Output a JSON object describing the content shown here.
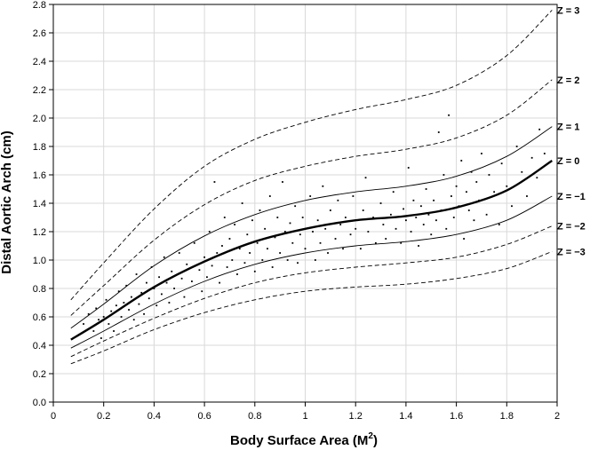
{
  "chart_data": {
    "type": "scatter",
    "title": "",
    "xlabel": "Body Surface Area (M",
    "xlabel_superscript": "2",
    "xlabel_suffix": ")",
    "ylabel": "Distal Aortic Arch (cm)",
    "xlim": [
      0,
      2
    ],
    "ylim": [
      0,
      2.8
    ],
    "grid": true,
    "x_ticks": [
      0,
      0.2,
      0.4,
      0.6,
      0.8,
      1,
      1.2,
      1.4,
      1.6,
      1.8,
      2
    ],
    "x_tick_labels": [
      "0",
      "0.2",
      "0.4",
      "0.6",
      "0.8",
      "1",
      "1.2",
      "1.4",
      "1.6",
      "1.8",
      "2"
    ],
    "y_ticks": [
      0,
      0.2,
      0.4,
      0.6,
      0.8,
      1.0,
      1.2,
      1.4,
      1.6,
      1.8,
      2.0,
      2.2,
      2.4,
      2.6,
      2.8
    ],
    "y_tick_labels": [
      "0.0",
      "0.2",
      "0.4",
      "0.6",
      "0.8",
      "1.0",
      "1.2",
      "1.4",
      "1.6",
      "1.8",
      "2.0",
      "2.2",
      "2.4",
      "2.6",
      "2.8"
    ],
    "curve_x": [
      0.07,
      0.2,
      0.4,
      0.6,
      0.8,
      1.0,
      1.2,
      1.4,
      1.6,
      1.8,
      1.98
    ],
    "series": [
      {
        "name": "Z = 3",
        "label": "Z = 3",
        "style": "dashed",
        "values": [
          0.72,
          0.98,
          1.36,
          1.66,
          1.85,
          1.97,
          2.06,
          2.13,
          2.23,
          2.44,
          2.76
        ]
      },
      {
        "name": "Z = 2",
        "label": "Z = 2",
        "style": "dashed",
        "values": [
          0.61,
          0.82,
          1.14,
          1.39,
          1.56,
          1.66,
          1.73,
          1.78,
          1.86,
          2.02,
          2.27
        ]
      },
      {
        "name": "Z = 1",
        "label": "Z = 1",
        "style": "solid",
        "values": [
          0.52,
          0.69,
          0.96,
          1.17,
          1.32,
          1.42,
          1.48,
          1.52,
          1.59,
          1.73,
          1.94
        ]
      },
      {
        "name": "Z = 0",
        "label": "Z = 0",
        "style": "bold",
        "values": [
          0.44,
          0.58,
          0.81,
          0.99,
          1.13,
          1.22,
          1.28,
          1.31,
          1.37,
          1.49,
          1.7
        ]
      },
      {
        "name": "Z = −1",
        "label": "Z = −1",
        "style": "solid",
        "values": [
          0.38,
          0.5,
          0.69,
          0.85,
          0.97,
          1.05,
          1.1,
          1.13,
          1.18,
          1.28,
          1.45
        ]
      },
      {
        "name": "Z = −2",
        "label": "Z = −2",
        "style": "dashed",
        "values": [
          0.32,
          0.43,
          0.59,
          0.73,
          0.84,
          0.91,
          0.95,
          0.98,
          1.02,
          1.11,
          1.24
        ]
      },
      {
        "name": "Z = −3",
        "label": "Z = −3",
        "style": "dashed",
        "values": [
          0.27,
          0.36,
          0.51,
          0.63,
          0.72,
          0.78,
          0.81,
          0.83,
          0.87,
          0.94,
          1.06
        ]
      }
    ],
    "points": [
      [
        0.12,
        0.55
      ],
      [
        0.14,
        0.62
      ],
      [
        0.16,
        0.5
      ],
      [
        0.17,
        0.66
      ],
      [
        0.18,
        0.58
      ],
      [
        0.19,
        0.45
      ],
      [
        0.2,
        0.6
      ],
      [
        0.21,
        0.72
      ],
      [
        0.22,
        0.55
      ],
      [
        0.23,
        0.64
      ],
      [
        0.24,
        0.5
      ],
      [
        0.25,
        0.68
      ],
      [
        0.26,
        0.78
      ],
      [
        0.27,
        0.6
      ],
      [
        0.28,
        0.7
      ],
      [
        0.29,
        0.82
      ],
      [
        0.3,
        0.65
      ],
      [
        0.31,
        0.74
      ],
      [
        0.32,
        0.58
      ],
      [
        0.33,
        0.9
      ],
      [
        0.34,
        0.69
      ],
      [
        0.35,
        0.77
      ],
      [
        0.36,
        0.62
      ],
      [
        0.37,
        0.84
      ],
      [
        0.38,
        0.73
      ],
      [
        0.39,
        0.95
      ],
      [
        0.4,
        0.8
      ],
      [
        0.41,
        0.68
      ],
      [
        0.42,
        0.88
      ],
      [
        0.43,
        0.76
      ],
      [
        0.44,
        1.02
      ],
      [
        0.45,
        0.84
      ],
      [
        0.46,
        0.7
      ],
      [
        0.47,
        0.92
      ],
      [
        0.48,
        0.8
      ],
      [
        0.5,
        1.05
      ],
      [
        0.51,
        0.87
      ],
      [
        0.52,
        0.74
      ],
      [
        0.53,
        0.97
      ],
      [
        0.55,
        0.85
      ],
      [
        0.56,
        1.12
      ],
      [
        0.58,
        0.93
      ],
      [
        0.59,
        0.78
      ],
      [
        0.6,
        1.02
      ],
      [
        0.61,
        0.88
      ],
      [
        0.62,
        1.2
      ],
      [
        0.63,
        0.96
      ],
      [
        0.64,
        1.55
      ],
      [
        0.65,
        1.05
      ],
      [
        0.66,
        0.84
      ],
      [
        0.67,
        1.1
      ],
      [
        0.68,
        1.3
      ],
      [
        0.69,
        0.95
      ],
      [
        0.7,
        1.15
      ],
      [
        0.71,
        1.0
      ],
      [
        0.72,
        1.25
      ],
      [
        0.73,
        0.9
      ],
      [
        0.74,
        1.08
      ],
      [
        0.75,
        1.4
      ],
      [
        0.76,
        0.98
      ],
      [
        0.77,
        1.18
      ],
      [
        0.78,
        1.05
      ],
      [
        0.79,
        1.28
      ],
      [
        0.8,
        0.92
      ],
      [
        0.81,
        1.12
      ],
      [
        0.82,
        1.35
      ],
      [
        0.83,
        1.0
      ],
      [
        0.84,
        1.22
      ],
      [
        0.85,
        1.08
      ],
      [
        0.86,
        1.45
      ],
      [
        0.87,
        0.95
      ],
      [
        0.88,
        1.16
      ],
      [
        0.89,
        1.3
      ],
      [
        0.9,
        1.05
      ],
      [
        0.91,
        1.55
      ],
      [
        0.92,
        1.2
      ],
      [
        0.93,
        1.0
      ],
      [
        0.94,
        1.26
      ],
      [
        0.95,
        1.12
      ],
      [
        0.96,
        1.38
      ],
      [
        0.97,
        0.98
      ],
      [
        0.98,
        1.18
      ],
      [
        0.99,
        1.3
      ],
      [
        1.0,
        1.08
      ],
      [
        1.02,
        1.45
      ],
      [
        1.03,
        1.2
      ],
      [
        1.04,
        1.0
      ],
      [
        1.05,
        1.28
      ],
      [
        1.06,
        1.12
      ],
      [
        1.07,
        1.52
      ],
      [
        1.08,
        1.22
      ],
      [
        1.09,
        1.05
      ],
      [
        1.1,
        1.35
      ],
      [
        1.12,
        1.15
      ],
      [
        1.13,
        1.42
      ],
      [
        1.14,
        1.25
      ],
      [
        1.15,
        1.08
      ],
      [
        1.16,
        1.3
      ],
      [
        1.18,
        1.18
      ],
      [
        1.19,
        1.45
      ],
      [
        1.2,
        1.22
      ],
      [
        1.22,
        1.08
      ],
      [
        1.23,
        1.35
      ],
      [
        1.24,
        1.58
      ],
      [
        1.25,
        1.2
      ],
      [
        1.27,
        1.3
      ],
      [
        1.28,
        1.12
      ],
      [
        1.3,
        1.4
      ],
      [
        1.31,
        1.25
      ],
      [
        1.32,
        1.15
      ],
      [
        1.34,
        1.32
      ],
      [
        1.35,
        1.48
      ],
      [
        1.36,
        1.22
      ],
      [
        1.38,
        1.12
      ],
      [
        1.39,
        1.36
      ],
      [
        1.4,
        1.28
      ],
      [
        1.41,
        1.65
      ],
      [
        1.42,
        1.2
      ],
      [
        1.43,
        1.42
      ],
      [
        1.44,
        1.3
      ],
      [
        1.45,
        1.1
      ],
      [
        1.46,
        1.38
      ],
      [
        1.47,
        1.25
      ],
      [
        1.48,
        1.5
      ],
      [
        1.49,
        1.32
      ],
      [
        1.5,
        1.18
      ],
      [
        1.51,
        1.42
      ],
      [
        1.52,
        1.28
      ],
      [
        1.53,
        1.9
      ],
      [
        1.54,
        1.35
      ],
      [
        1.55,
        1.6
      ],
      [
        1.56,
        1.22
      ],
      [
        1.57,
        2.02
      ],
      [
        1.58,
        1.45
      ],
      [
        1.59,
        1.3
      ],
      [
        1.6,
        1.52
      ],
      [
        1.61,
        1.38
      ],
      [
        1.62,
        1.7
      ],
      [
        1.63,
        1.15
      ],
      [
        1.64,
        1.48
      ],
      [
        1.65,
        1.35
      ],
      [
        1.66,
        1.62
      ],
      [
        1.67,
        1.28
      ],
      [
        1.68,
        1.55
      ],
      [
        1.69,
        1.42
      ],
      [
        1.7,
        1.75
      ],
      [
        1.72,
        1.32
      ],
      [
        1.73,
        1.6
      ],
      [
        1.75,
        1.48
      ],
      [
        1.77,
        1.25
      ],
      [
        1.78,
        1.68
      ],
      [
        1.8,
        1.52
      ],
      [
        1.82,
        1.38
      ],
      [
        1.84,
        1.8
      ],
      [
        1.86,
        1.62
      ],
      [
        1.88,
        1.45
      ],
      [
        1.9,
        1.72
      ],
      [
        1.92,
        1.58
      ],
      [
        1.93,
        1.92
      ],
      [
        1.95,
        1.75
      ]
    ]
  }
}
